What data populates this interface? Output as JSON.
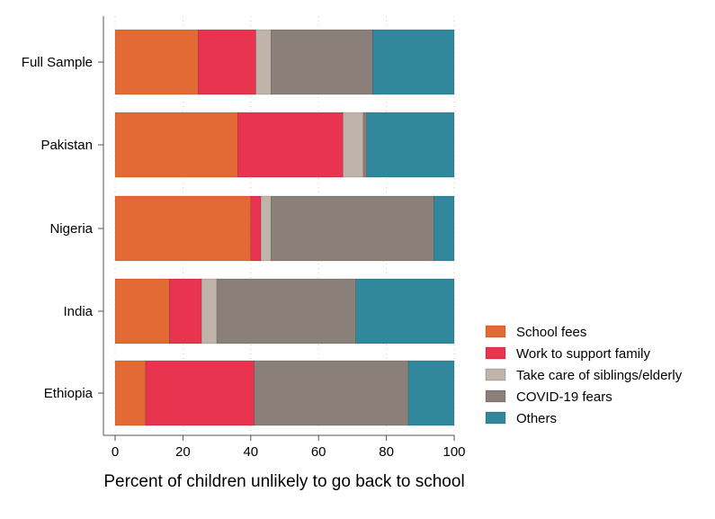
{
  "chart_data": {
    "type": "bar",
    "orientation": "horizontal",
    "stacked": true,
    "categories": [
      "Full Sample",
      "Pakistan",
      "Nigeria",
      "India",
      "Ethiopia"
    ],
    "series": [
      {
        "name": "School fees",
        "color": "#e46a35",
        "values": [
          24.5,
          36.2,
          40.0,
          16.0,
          9.0
        ]
      },
      {
        "name": "Work to support family",
        "color": "#e8344f",
        "values": [
          17.0,
          31.0,
          3.0,
          9.5,
          32.0
        ]
      },
      {
        "name": "Take care of siblings/elderly",
        "color": "#c0b4aa",
        "values": [
          4.5,
          6.0,
          3.0,
          4.5,
          0.0
        ]
      },
      {
        "name": "COVID-19 fears",
        "color": "#8a8079",
        "values": [
          30.0,
          1.0,
          48.0,
          41.0,
          45.5
        ]
      },
      {
        "name": "Others",
        "color": "#31889c",
        "values": [
          24.0,
          25.8,
          6.0,
          29.0,
          13.5
        ]
      }
    ],
    "x_ticks": [
      "0",
      "20",
      "40",
      "60",
      "80",
      "100"
    ],
    "xlim": [
      0,
      100
    ],
    "xlabel": "Percent of children unlikely to go back to school",
    "ylabel": "",
    "grid": true,
    "legend_position": "bottom-right"
  }
}
